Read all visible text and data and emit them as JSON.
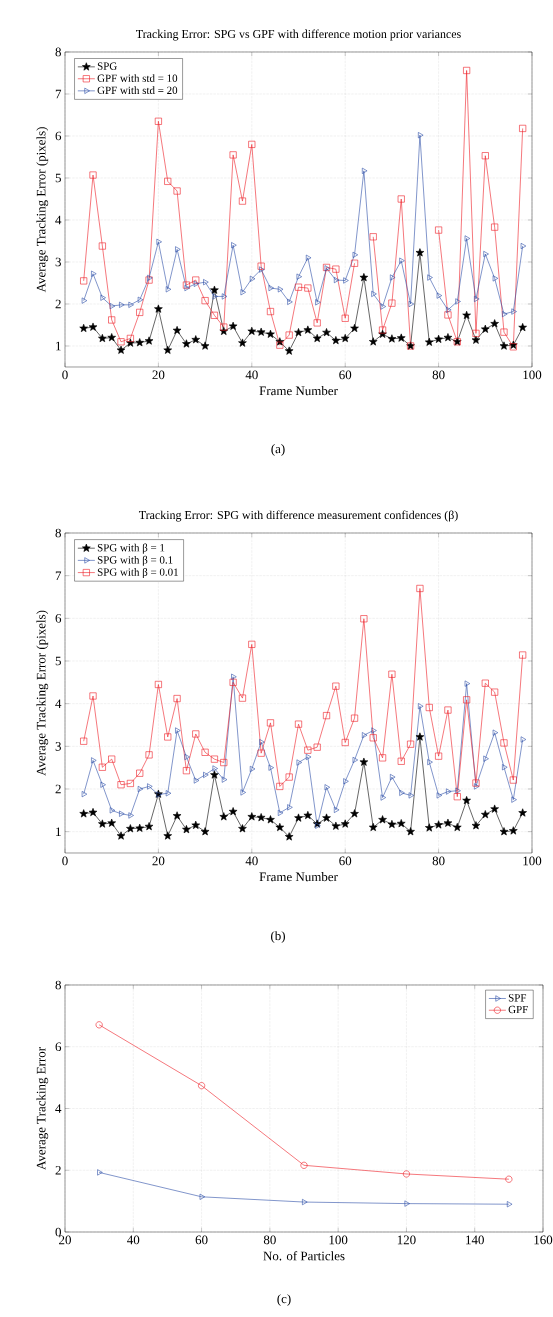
{
  "chart_data": [
    {
      "type": "line",
      "title": "Tracking Error: SPG vs GPF with difference motion prior variances",
      "xlabel": "Frame Number",
      "ylabel": "Average Tracking Error (pixels)",
      "annotations": [
        "(a)"
      ],
      "xlim": [
        0,
        100
      ],
      "ylim": [
        0.5,
        8
      ],
      "xticks": [
        0,
        20,
        40,
        60,
        80,
        100
      ],
      "yticks": [
        1,
        2,
        3,
        4,
        5,
        6,
        7,
        8
      ],
      "grid": true,
      "legend": "top left",
      "x": [
        4,
        6,
        8,
        10,
        12,
        14,
        16,
        18,
        20,
        22,
        24,
        26,
        28,
        30,
        32,
        34,
        36,
        38,
        40,
        42,
        44,
        46,
        48,
        50,
        52,
        54,
        56,
        58,
        60,
        62,
        64,
        66,
        68,
        70,
        72,
        74,
        76,
        78,
        80,
        82,
        84,
        86,
        88,
        90,
        92,
        94,
        96,
        98
      ],
      "series": [
        {
          "name": "SPG",
          "color": "#000000",
          "marker": "star",
          "values": [
            1.42,
            1.45,
            1.18,
            1.2,
            0.9,
            1.07,
            1.08,
            1.12,
            1.88,
            0.9,
            1.37,
            1.05,
            1.15,
            1.0,
            2.33,
            1.35,
            1.47,
            1.07,
            1.35,
            1.33,
            1.28,
            1.1,
            0.88,
            1.32,
            1.38,
            1.18,
            1.32,
            1.13,
            1.18,
            1.42,
            2.63,
            1.1,
            1.28,
            1.17,
            1.19,
            1.0,
            3.22,
            1.09,
            1.16,
            1.2,
            1.1,
            1.73,
            1.14,
            1.4,
            1.53,
            1.0,
            1.02,
            1.44
          ]
        },
        {
          "name": "GPF with std = 10",
          "color": "#ee1c25",
          "marker": "square",
          "values": [
            2.55,
            5.07,
            3.38,
            1.62,
            1.1,
            1.18,
            1.8,
            2.57,
            6.35,
            4.92,
            4.69,
            2.45,
            2.57,
            2.08,
            1.73,
            1.45,
            5.55,
            4.45,
            5.8,
            2.9,
            1.82,
            1.02,
            1.26,
            2.4,
            2.38,
            1.55,
            2.87,
            2.83,
            1.66,
            2.97,
            null,
            3.6,
            1.38,
            2.02,
            4.5,
            1.0,
            null,
            null,
            3.76,
            1.74,
            1.1,
            7.56,
            1.3,
            5.53,
            3.83,
            1.33,
            0.98,
            6.18
          ]
        },
        {
          "name": "GPF with std = 20",
          "color": "#2e4fa8",
          "marker": "triangle",
          "values": [
            2.08,
            2.72,
            2.15,
            1.95,
            1.98,
            1.98,
            2.1,
            2.62,
            3.48,
            2.35,
            3.3,
            2.38,
            2.48,
            2.52,
            2.18,
            2.18,
            3.4,
            2.28,
            2.6,
            2.82,
            2.38,
            2.35,
            2.05,
            2.65,
            3.1,
            2.04,
            2.85,
            2.57,
            2.56,
            3.17,
            5.17,
            2.24,
            1.94,
            2.63,
            3.03,
            2.0,
            6.02,
            2.63,
            2.2,
            1.86,
            2.06,
            3.56,
            2.12,
            3.19,
            2.61,
            1.76,
            1.82,
            3.38
          ]
        }
      ]
    },
    {
      "type": "line",
      "title": "Tracking Error: SPG with difference measurement confidences (β)",
      "xlabel": "Frame Number",
      "ylabel": "Average Tracking Error (pixels)",
      "annotations": [
        "(b)"
      ],
      "xlim": [
        0,
        100
      ],
      "ylim": [
        0.5,
        8
      ],
      "xticks": [
        0,
        20,
        40,
        60,
        80,
        100
      ],
      "yticks": [
        1,
        2,
        3,
        4,
        5,
        6,
        7,
        8
      ],
      "grid": true,
      "legend": "top left",
      "x": [
        4,
        6,
        8,
        10,
        12,
        14,
        16,
        18,
        20,
        22,
        24,
        26,
        28,
        30,
        32,
        34,
        36,
        38,
        40,
        42,
        44,
        46,
        48,
        50,
        52,
        54,
        56,
        58,
        60,
        62,
        64,
        66,
        68,
        70,
        72,
        74,
        76,
        78,
        80,
        82,
        84,
        86,
        88,
        90,
        92,
        94,
        96,
        98
      ],
      "series": [
        {
          "name": "SPG with β = 1",
          "color": "#000000",
          "marker": "star",
          "values": [
            1.42,
            1.45,
            1.18,
            1.2,
            0.9,
            1.07,
            1.08,
            1.12,
            1.88,
            0.9,
            1.37,
            1.05,
            1.15,
            1.0,
            2.33,
            1.35,
            1.47,
            1.07,
            1.35,
            1.33,
            1.28,
            1.1,
            0.88,
            1.32,
            1.38,
            1.18,
            1.32,
            1.13,
            1.18,
            1.42,
            2.63,
            1.1,
            1.28,
            1.17,
            1.19,
            1.0,
            3.22,
            1.09,
            1.16,
            1.2,
            1.1,
            1.73,
            1.14,
            1.4,
            1.53,
            1.0,
            1.02,
            1.44
          ]
        },
        {
          "name": "SPG with β = 0.1",
          "color": "#2e4fa8",
          "marker": "triangle",
          "values": [
            1.88,
            2.67,
            2.1,
            1.5,
            1.42,
            1.38,
            2.0,
            2.06,
            1.87,
            1.9,
            3.37,
            2.75,
            2.2,
            2.33,
            2.48,
            2.22,
            4.63,
            1.92,
            2.47,
            3.1,
            2.5,
            1.44,
            1.57,
            2.62,
            2.75,
            1.14,
            2.04,
            1.51,
            2.18,
            2.68,
            3.26,
            3.37,
            1.8,
            2.28,
            1.91,
            1.85,
            3.94,
            2.63,
            1.85,
            1.94,
            1.96,
            4.47,
            2.06,
            2.71,
            3.32,
            2.51,
            1.75,
            3.16
          ]
        },
        {
          "name": "SPG with β = 0.01",
          "color": "#ee1c25",
          "marker": "square",
          "values": [
            3.12,
            4.18,
            2.51,
            2.7,
            2.1,
            2.13,
            2.37,
            2.8,
            4.45,
            3.22,
            4.12,
            2.43,
            3.29,
            2.86,
            2.7,
            2.62,
            4.5,
            4.13,
            5.39,
            2.84,
            3.55,
            2.06,
            2.28,
            3.52,
            2.91,
            2.98,
            3.72,
            4.41,
            3.09,
            3.66,
            5.99,
            3.2,
            2.73,
            4.69,
            2.65,
            3.05,
            6.7,
            3.91,
            2.77,
            3.85,
            1.82,
            4.09,
            2.14,
            4.48,
            4.27,
            3.08,
            2.21,
            5.14
          ]
        }
      ]
    },
    {
      "type": "line",
      "xlabel": "No. of Particles",
      "ylabel": "Average Tracking Error",
      "annotations": [
        "(c)"
      ],
      "xlim": [
        20,
        160
      ],
      "ylim": [
        0,
        8
      ],
      "xticks": [
        20,
        40,
        60,
        80,
        100,
        120,
        140,
        160
      ],
      "yticks": [
        0,
        2,
        4,
        6,
        8
      ],
      "grid": true,
      "legend": "top right",
      "x": [
        30,
        60,
        90,
        120,
        150
      ],
      "series": [
        {
          "name": "SPF",
          "color": "#2e4fa8",
          "marker": "triangle",
          "values": [
            1.93,
            1.14,
            0.97,
            0.92,
            0.9
          ]
        },
        {
          "name": "GPF",
          "color": "#ee1c25",
          "marker": "circle",
          "values": [
            6.71,
            4.74,
            2.16,
            1.88,
            1.71
          ]
        }
      ]
    }
  ]
}
